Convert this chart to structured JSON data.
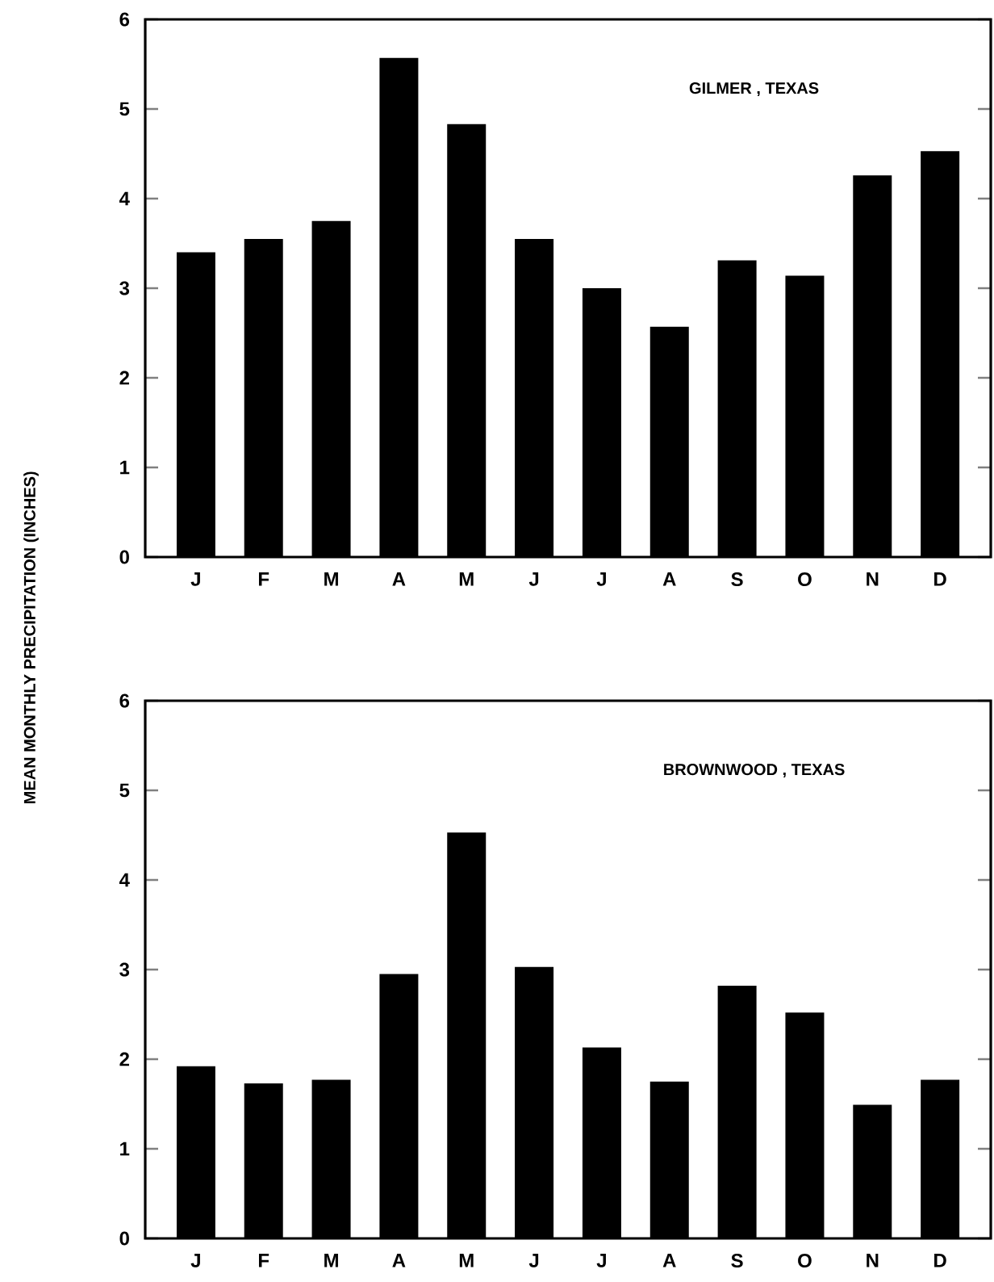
{
  "chart_data": [
    {
      "type": "bar",
      "title": "GILMER , TEXAS",
      "ylabel": "MEAN MONTHLY PRECIPITATION (INCHES)",
      "categories": [
        "J",
        "F",
        "M",
        "A",
        "M",
        "J",
        "J",
        "A",
        "S",
        "O",
        "N",
        "D"
      ],
      "values": [
        3.4,
        3.55,
        3.75,
        5.57,
        4.83,
        3.55,
        3.0,
        2.57,
        3.31,
        3.14,
        4.26,
        4.53
      ],
      "color": "#000000",
      "ylim": [
        0,
        6
      ],
      "yticks": [
        0,
        1,
        2,
        3,
        4,
        5,
        6
      ]
    },
    {
      "type": "bar",
      "title": "BROWNWOOD , TEXAS",
      "categories": [
        "J",
        "F",
        "M",
        "A",
        "M",
        "J",
        "J",
        "A",
        "S",
        "O",
        "N",
        "D"
      ],
      "values": [
        1.92,
        1.73,
        1.77,
        2.95,
        4.53,
        3.03,
        2.13,
        1.75,
        2.82,
        2.52,
        1.49,
        1.77
      ],
      "color": "#000000",
      "ylim": [
        0,
        6
      ],
      "yticks": [
        0,
        1,
        2,
        3,
        4,
        5,
        6
      ]
    }
  ]
}
